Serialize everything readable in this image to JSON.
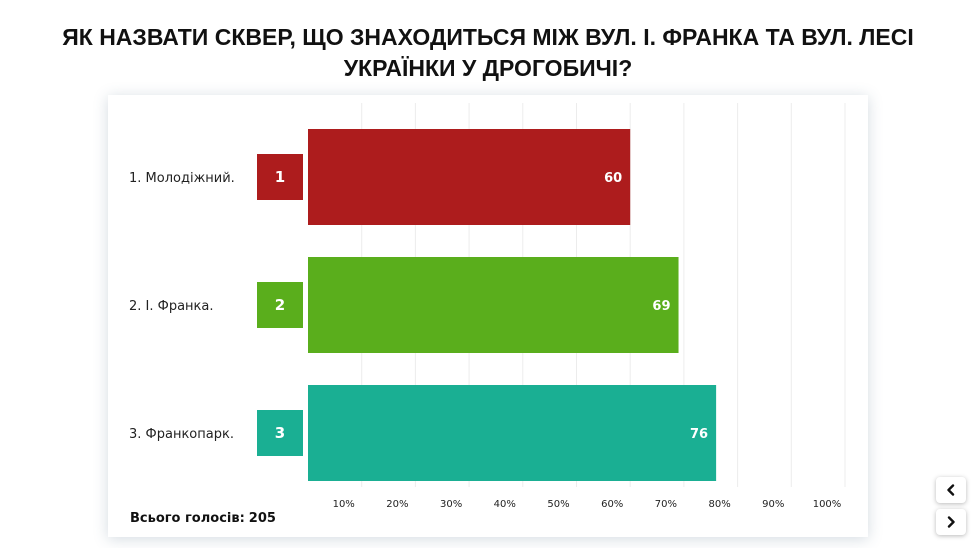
{
  "title": "ЯК НАЗВАТИ СКВЕР, ЩО ЗНАХОДИТЬСЯ МІЖ ВУЛ. І. ФРАНКА ТА ВУЛ. ЛЕСІ УКРАЇНКИ У ДРОГОБИЧІ?",
  "total": {
    "label": "Всього голосів:",
    "value": "205"
  },
  "nav": {
    "prev_icon": "chevron-left-icon",
    "next_icon": "chevron-right-icon"
  },
  "chart_data": {
    "type": "bar",
    "orientation": "horizontal",
    "categories": [
      "1. Молодіжний.",
      "2. І. Франка.",
      "3. Франкопарк."
    ],
    "badges": [
      "1",
      "2",
      "3"
    ],
    "values": [
      60,
      69,
      76
    ],
    "colors": [
      "#AD1C1D",
      "#5AAE1C",
      "#1AAF93"
    ],
    "xlim": [
      0,
      100
    ],
    "xticks": [
      "10%",
      "20%",
      "30%",
      "40%",
      "50%",
      "60%",
      "70%",
      "80%",
      "90%",
      "100%"
    ],
    "grid": true,
    "legend": "none"
  }
}
